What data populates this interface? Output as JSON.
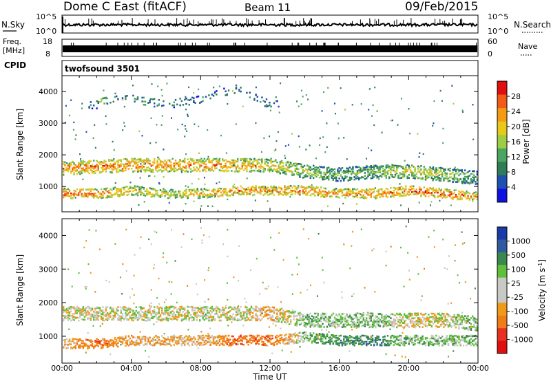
{
  "header": {
    "title": "Dome C East (fitACF)",
    "beam": "Beam 11",
    "date": "09/Feb/2015"
  },
  "nsky_panel": {
    "label": "N.Sky",
    "right_label": "N.Search",
    "left_ticks": [
      "10^5",
      "10^0"
    ],
    "right_ticks": [
      "10^5",
      "10^0"
    ]
  },
  "freq_panel": {
    "label_top": "Freq.",
    "label_unit": "[MHz]",
    "right_label": "Nave",
    "left_ticks": [
      "18",
      "8"
    ],
    "right_ticks": [
      "60",
      "0"
    ]
  },
  "cpid": {
    "label": "CPID",
    "value": "twofsound 3501"
  },
  "axes": {
    "ylabel": "Slant Range [km]",
    "xlabel": "Time UT",
    "yticks": [
      "4000",
      "3000",
      "2000",
      "1000"
    ],
    "xticks": [
      "00:00",
      "04:00",
      "08:00",
      "12:00",
      "16:00",
      "20:00",
      "00:00"
    ]
  },
  "power_colorbar": {
    "title": "Power [dB]",
    "ticks": [
      "28",
      "24",
      "20",
      "16",
      "12",
      "8",
      "4"
    ],
    "colors": [
      "#e01010",
      "#f25a18",
      "#f59a14",
      "#e8c818",
      "#9fcc44",
      "#4aa560",
      "#2f7c55",
      "#1f4fb0",
      "#1010e0"
    ]
  },
  "velocity_colorbar": {
    "title": "Velocity [m s",
    "title_sup": "-1",
    "title_end": "]",
    "ticks": [
      "1000",
      "500",
      "100",
      "25",
      "-25",
      "-100",
      "-500",
      "-1000"
    ],
    "colors": [
      "#1a3aa8",
      "#2f5aa0",
      "#3a8850",
      "#5fbf3a",
      "#c8c8c4",
      "#c8c8c4",
      "#f09a1a",
      "#f07c18",
      "#e83020",
      "#e01010"
    ]
  },
  "chart_data": [
    {
      "type": "heatmap",
      "title": "Power",
      "ylabel": "Slant Range [km]",
      "xlabel": "",
      "x_range": [
        "00:00",
        "24:00"
      ],
      "ylim": [
        200,
        4500
      ],
      "colorbar_range_dB": [
        0,
        30
      ],
      "series": [
        {
          "name": "main band",
          "x_hours": [
            0,
            2,
            4,
            6,
            8,
            10,
            12,
            14,
            16,
            18,
            20,
            22,
            24
          ],
          "range_km": [
            1600,
            1650,
            1700,
            1700,
            1700,
            1700,
            1700,
            1500,
            1400,
            1500,
            1500,
            1400,
            1300
          ],
          "power_dB": [
            24,
            26,
            26,
            24,
            24,
            24,
            20,
            16,
            12,
            14,
            18,
            16,
            10
          ]
        },
        {
          "name": "lower band",
          "x_hours": [
            0,
            2,
            4,
            6,
            8,
            10,
            12,
            14,
            16,
            18,
            20,
            22,
            24
          ],
          "range_km": [
            800,
            800,
            900,
            800,
            800,
            900,
            900,
            900,
            800,
            800,
            900,
            800,
            700
          ],
          "power_dB": [
            28,
            26,
            20,
            18,
            22,
            26,
            24,
            26,
            24,
            26,
            28,
            28,
            24
          ]
        },
        {
          "name": "upper patches",
          "x_hours": [
            2,
            4,
            6,
            8,
            10,
            12
          ],
          "range_km": [
            3700,
            3800,
            3600,
            3800,
            4100,
            3600
          ],
          "power_dB": [
            12,
            10,
            8,
            8,
            6,
            8
          ]
        }
      ]
    },
    {
      "type": "heatmap",
      "title": "Velocity",
      "ylabel": "Slant Range [km]",
      "xlabel": "Time UT",
      "x_range": [
        "00:00",
        "24:00"
      ],
      "ylim": [
        200,
        4500
      ],
      "colorbar_range_ms": [
        -1000,
        1000
      ],
      "series": [
        {
          "name": "main band",
          "x_hours": [
            0,
            2,
            4,
            6,
            8,
            10,
            12,
            14,
            16,
            18,
            20,
            22,
            24
          ],
          "range_km": [
            1700,
            1700,
            1700,
            1700,
            1700,
            1700,
            1700,
            1500,
            1500,
            1500,
            1500,
            1500,
            1400
          ],
          "velocity_ms": [
            0,
            0,
            0,
            0,
            0,
            0,
            -100,
            100,
            100,
            100,
            0,
            0,
            100
          ]
        },
        {
          "name": "lower band",
          "x_hours": [
            0,
            2,
            4,
            6,
            8,
            10,
            12,
            14,
            16,
            18,
            20,
            22,
            24
          ],
          "range_km": [
            800,
            800,
            900,
            900,
            900,
            900,
            900,
            1000,
            900,
            900,
            900,
            900,
            900
          ],
          "velocity_ms": [
            -100,
            -300,
            -100,
            -100,
            -100,
            -300,
            -300,
            100,
            300,
            300,
            100,
            100,
            100
          ]
        }
      ]
    }
  ]
}
